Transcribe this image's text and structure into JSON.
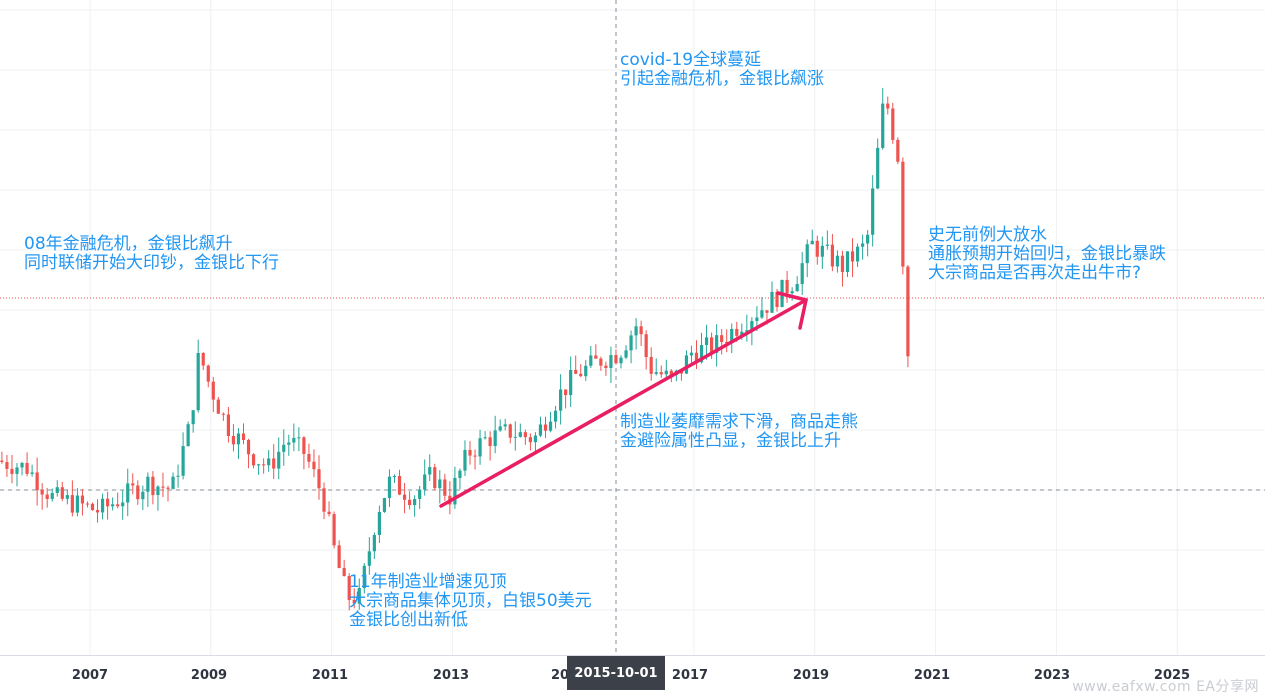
{
  "chart_data": {
    "type": "candlestick",
    "title": "",
    "xlabel": "",
    "ylabel": "",
    "x_ticks": [
      "2007",
      "2009",
      "2011",
      "2013",
      "2015-10-01",
      "2017",
      "2019",
      "2021",
      "2023",
      "2025"
    ],
    "crosshair_label": "2015-10-01",
    "grid": true,
    "legend": "none",
    "colors": {
      "up": "#26a69a",
      "down": "#ef5350",
      "annotation": "#2196f3",
      "arrow": "#e91e63",
      "price_line": "#ef5350"
    },
    "annotations": [
      {
        "id": "covid",
        "lines": [
          "covid-19全球蔓延",
          "引起金融危机，金银比飙涨"
        ]
      },
      {
        "id": "gfc",
        "lines": [
          "08年金融危机，金银比飙升",
          "同时联储开始大印钞，金银比下行"
        ]
      },
      {
        "id": "qe",
        "lines": [
          "史无前例大放水",
          "通胀预期开始回归，金银比暴跌",
          "大宗商品是否再次走出牛市?"
        ]
      },
      {
        "id": "manuf",
        "lines": [
          "制造业萎靡需求下滑，商品走熊",
          "金避险属性凸显，金银比上升"
        ]
      },
      {
        "id": "peak2011",
        "lines": [
          "11年制造业增速见顶",
          "大宗商品集体见顶，白银50美元",
          "金银比创出新低"
        ]
      }
    ],
    "series": [
      {
        "name": "",
        "kind": "trend_waypoints",
        "points": [
          [
            2005.5,
            57
          ],
          [
            2006.0,
            56
          ],
          [
            2006.4,
            52
          ],
          [
            2006.8,
            51
          ],
          [
            2007.2,
            50
          ],
          [
            2007.6,
            52
          ],
          [
            2008.0,
            54
          ],
          [
            2008.4,
            53
          ],
          [
            2008.7,
            62
          ],
          [
            2008.85,
            72
          ],
          [
            2009.0,
            68
          ],
          [
            2009.3,
            62
          ],
          [
            2009.7,
            58
          ],
          [
            2010.0,
            56
          ],
          [
            2010.3,
            60
          ],
          [
            2010.6,
            58
          ],
          [
            2010.9,
            52
          ],
          [
            2011.1,
            44
          ],
          [
            2011.3,
            38
          ],
          [
            2011.5,
            38
          ],
          [
            2011.8,
            50
          ],
          [
            2012.0,
            54
          ],
          [
            2012.4,
            52
          ],
          [
            2012.7,
            55
          ],
          [
            2013.0,
            52
          ],
          [
            2013.3,
            58
          ],
          [
            2013.6,
            60
          ],
          [
            2014.0,
            61
          ],
          [
            2014.4,
            60
          ],
          [
            2014.8,
            66
          ],
          [
            2015.1,
            69
          ],
          [
            2015.5,
            71
          ],
          [
            2015.8,
            72
          ],
          [
            2016.1,
            76
          ],
          [
            2016.3,
            70
          ],
          [
            2016.7,
            68
          ],
          [
            2017.0,
            72
          ],
          [
            2017.4,
            73
          ],
          [
            2017.8,
            76
          ],
          [
            2018.3,
            79
          ],
          [
            2018.7,
            82
          ],
          [
            2019.0,
            87
          ],
          [
            2019.5,
            84
          ],
          [
            2019.9,
            87
          ],
          [
            2020.2,
            108
          ],
          [
            2020.3,
            104
          ],
          [
            2020.45,
            98
          ],
          [
            2020.55,
            72
          ]
        ]
      }
    ]
  }
}
